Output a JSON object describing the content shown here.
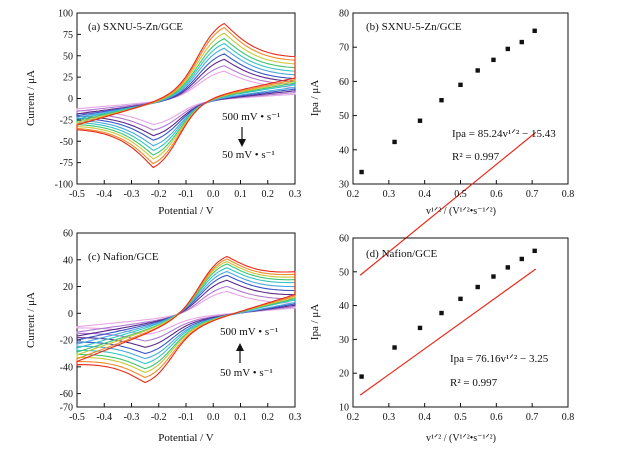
{
  "chart_data": [
    {
      "id": "a",
      "type": "line",
      "title": "(a) SXNU-5-Zn/GCE",
      "xlabel": "Potential / V",
      "ylabel": "Current / μA",
      "xlim": [
        -0.5,
        0.3
      ],
      "ylim": [
        -100,
        100
      ],
      "xticks": [
        "-0.5",
        "-0.4",
        "-0.3",
        "-0.2",
        "-0.1",
        "0.0",
        "0.1",
        "0.2",
        "0.3"
      ],
      "yticks": [
        "-100",
        "-75",
        "-50",
        "-25",
        "0",
        "25",
        "50",
        "75",
        "100"
      ],
      "annotations": {
        "top": "500 mV • s⁻¹",
        "bottom": "50 mV • s⁻¹",
        "arrow": "down"
      },
      "curve_model": {
        "ox_peak_potential": 0.04,
        "red_peak_potential": -0.22,
        "ox_peak_currents": [
          35,
          42,
          50,
          57,
          64,
          70,
          76,
          83,
          90,
          95
        ],
        "red_peak_currents": [
          -33,
          -40,
          -47,
          -53,
          -60,
          -66,
          -72,
          -77,
          -83,
          -88
        ],
        "start_currents": [
          -12,
          -15,
          -18,
          -20,
          -22,
          -24,
          -26,
          -28,
          -30,
          -31
        ],
        "end_currents_anodic": [
          10,
          13,
          16,
          19,
          23,
          27,
          31,
          35,
          39,
          43
        ],
        "end_currents_cathodic": [
          5,
          7,
          9,
          11,
          13,
          16,
          18,
          20,
          22,
          24
        ]
      },
      "grid": false
    },
    {
      "id": "b",
      "type": "scatter",
      "title": "(b) SXNU-5-Zn/GCE",
      "xlabel": "v¹ᐟ² / (V¹ᐟ²•s⁻¹ᐟ²)",
      "ylabel": "Ipa / μA",
      "xlim": [
        0.2,
        0.8
      ],
      "ylim": [
        30,
        80
      ],
      "xticks": [
        "0.2",
        "0.3",
        "0.4",
        "0.5",
        "0.6",
        "0.7",
        "0.8"
      ],
      "yticks": [
        "30",
        "40",
        "50",
        "60",
        "70",
        "80"
      ],
      "x": [
        0.224,
        0.316,
        0.387,
        0.447,
        0.5,
        0.548,
        0.592,
        0.632,
        0.671,
        0.707
      ],
      "y": [
        33.5,
        42.3,
        48.5,
        54.5,
        59.0,
        63.2,
        66.3,
        69.5,
        71.5,
        74.8
      ],
      "fit": {
        "slope": 85.24,
        "intercept": -15.43,
        "x_range": [
          0.22,
          0.71
        ]
      },
      "equation_label": "Ipa = 85.24v¹ᐟ² − 15.43",
      "r2_label": "R² = 0.997",
      "grid": false
    },
    {
      "id": "c",
      "type": "line",
      "title": "(c) Nafion/GCE",
      "xlabel": "Potential / V",
      "ylabel": "Current / μA",
      "xlim": [
        -0.5,
        0.3
      ],
      "ylim": [
        -70,
        60
      ],
      "xticks": [
        "-0.5",
        "-0.4",
        "-0.3",
        "-0.2",
        "-0.1",
        "0.0",
        "0.1",
        "0.2",
        "0.3"
      ],
      "yticks": [
        "-70",
        "-60",
        "-40",
        "-20",
        "0",
        "20",
        "40",
        "60"
      ],
      "annotations": {
        "top": "500 mV • s⁻¹",
        "bottom": "50 mV • s⁻¹",
        "arrow": "up"
      },
      "curve_model": {
        "ox_peak_potential": 0.05,
        "red_peak_potential": -0.25,
        "ox_peak_currents": [
          18,
          22,
          27,
          31,
          34,
          37,
          40,
          42,
          44,
          46
        ],
        "red_peak_currents": [
          -17,
          -22,
          -27,
          -32,
          -36,
          -40,
          -44,
          -47,
          -51,
          -55
        ],
        "start_currents": [
          -10,
          -14,
          -17,
          -20,
          -23,
          -26,
          -29,
          -31,
          -34,
          -36
        ],
        "end_currents_anodic": [
          6,
          9,
          12,
          15,
          18,
          21,
          23,
          25,
          27,
          29
        ],
        "end_currents_cathodic": [
          4,
          5,
          6,
          7,
          8,
          10,
          11,
          12,
          13,
          14
        ]
      },
      "grid": false
    },
    {
      "id": "d",
      "type": "scatter",
      "title": "(d) Nafion/GCE",
      "xlabel": "v¹ᐟ² / (V¹ᐟ²•s⁻¹ᐟ²)",
      "ylabel": "Ipa / μA",
      "xlim": [
        0.2,
        0.8
      ],
      "ylim": [
        10,
        60
      ],
      "xticks": [
        "0.2",
        "0.3",
        "0.4",
        "0.5",
        "0.6",
        "0.7",
        "0.8"
      ],
      "yticks": [
        "10",
        "20",
        "30",
        "40",
        "50",
        "60"
      ],
      "x": [
        0.224,
        0.316,
        0.387,
        0.447,
        0.5,
        0.548,
        0.592,
        0.632,
        0.671,
        0.707
      ],
      "y": [
        19.0,
        27.6,
        33.4,
        37.8,
        42.0,
        45.5,
        48.6,
        51.3,
        53.8,
        56.2
      ],
      "fit": {
        "slope": 76.16,
        "intercept": -3.25,
        "x_range": [
          0.22,
          0.71
        ]
      },
      "equation_label": "Ipa = 76.16v¹ᐟ² − 3.25",
      "r2_label": "R² = 0.997",
      "grid": false
    }
  ],
  "colors": {
    "cv_series": [
      "#e6a6e6",
      "#b07ad0",
      "#5a2a8a",
      "#3a56c8",
      "#4aa8e0",
      "#33c4c4",
      "#40c470",
      "#c8c83a",
      "#f08a2a",
      "#e82a1a"
    ],
    "fit_line": "#e82a1a",
    "points": "#111111",
    "axes": "#111111"
  }
}
